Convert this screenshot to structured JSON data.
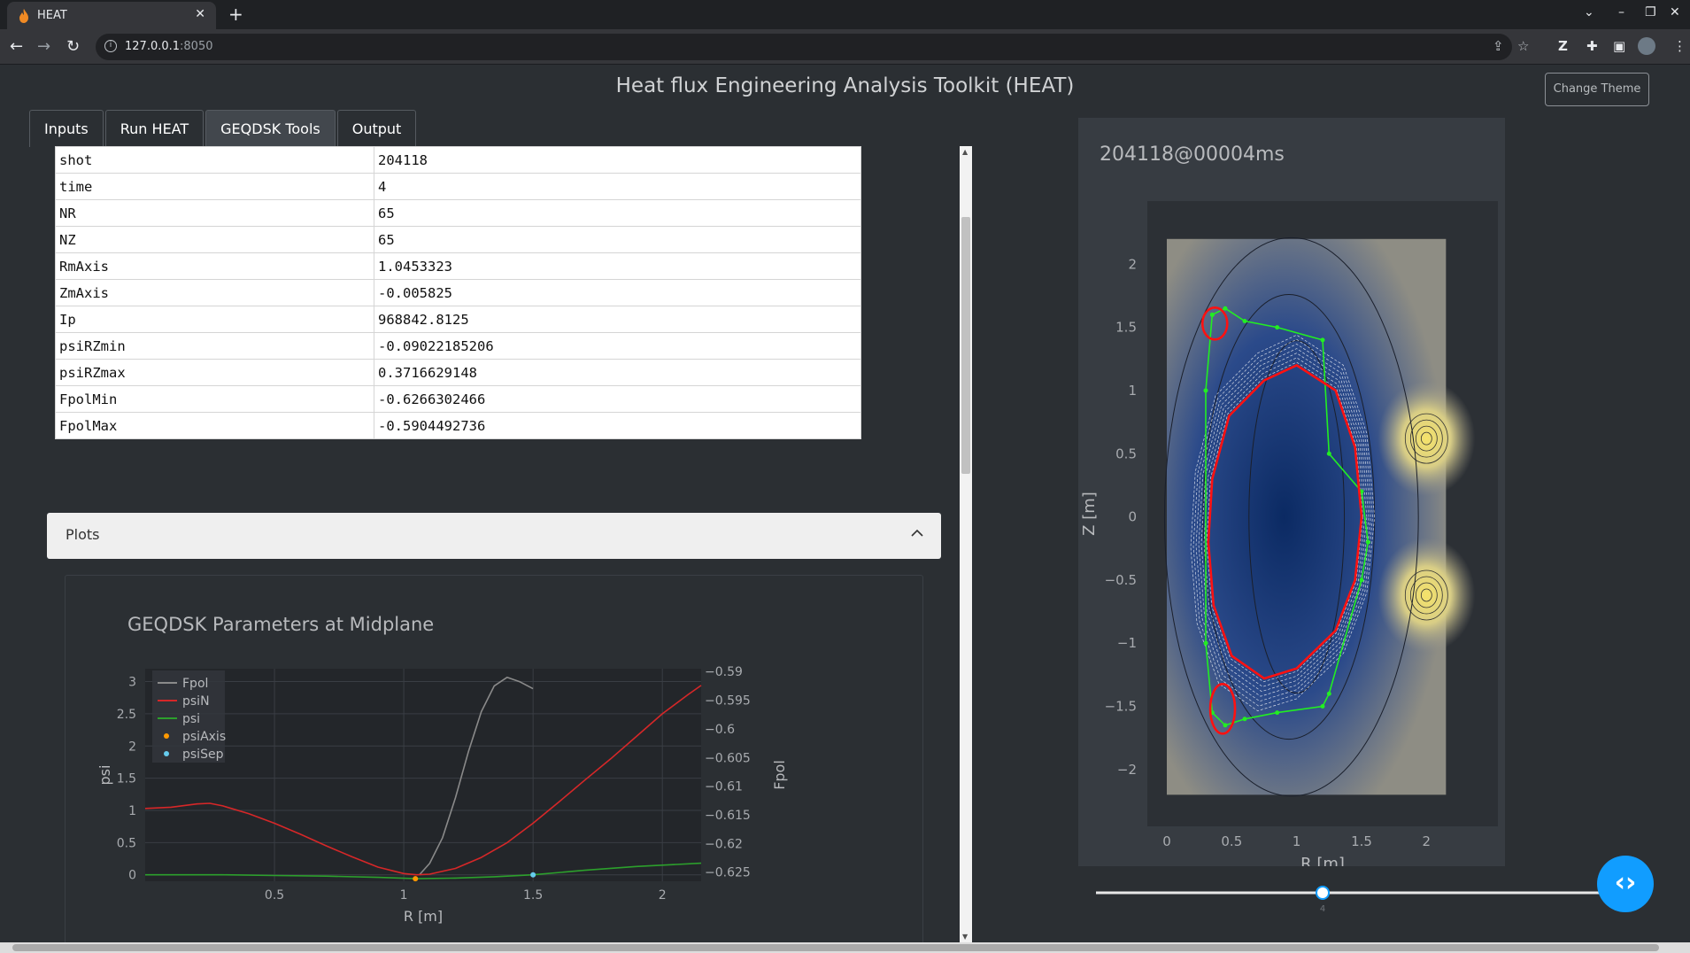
{
  "browser": {
    "tab_title": "HEAT",
    "url_host": "127.0.0.1",
    "url_port": ":8050"
  },
  "app": {
    "title": "Heat flux Engineering Analysis Toolkit (HEAT)",
    "theme_button": "Change Theme"
  },
  "tabs": [
    {
      "label": "Inputs",
      "active": false
    },
    {
      "label": "Run HEAT",
      "active": false
    },
    {
      "label": "GEQDSK Tools",
      "active": true
    },
    {
      "label": "Output",
      "active": false
    }
  ],
  "params_table": [
    {
      "key": "shot",
      "value": "204118"
    },
    {
      "key": "time",
      "value": "4"
    },
    {
      "key": "NR",
      "value": "65"
    },
    {
      "key": "NZ",
      "value": "65"
    },
    {
      "key": "RmAxis",
      "value": "1.0453323"
    },
    {
      "key": "ZmAxis",
      "value": "-0.005825"
    },
    {
      "key": "Ip",
      "value": "968842.8125"
    },
    {
      "key": "psiRZmin",
      "value": "-0.09022185206"
    },
    {
      "key": "psiRZmax",
      "value": "0.3716629148"
    },
    {
      "key": "FpolMin",
      "value": "-0.6266302466"
    },
    {
      "key": "FpolMax",
      "value": "-0.5904492736"
    }
  ],
  "plots_section": {
    "label": "Plots",
    "expanded": true
  },
  "slider": {
    "value": 4,
    "value_label": "4",
    "fraction": 0.44
  },
  "colors": {
    "accent": "#119dff",
    "fpol": "#8a8a8a",
    "psiN": "#d62728",
    "psi": "#2ca02c",
    "psiAxis": "#ff9900",
    "psiSep": "#66ccee",
    "wall": "#22ee22",
    "separatrix": "#ff1111"
  },
  "chart_data": [
    {
      "type": "line",
      "title": "GEQDSK Parameters at Midplane",
      "xlabel": "R [m]",
      "ylabel": "psi",
      "y2label": "Fpol",
      "xlim": [
        0.0,
        2.15
      ],
      "ylim": [
        -0.1,
        3.2
      ],
      "y2lim": [
        -0.6266,
        -0.5895
      ],
      "x_ticks": [
        "0.5",
        "1",
        "1.5",
        "2"
      ],
      "y_ticks": [
        "0",
        "0.5",
        "1",
        "1.5",
        "2",
        "2.5",
        "3"
      ],
      "y2_ticks": [
        "−0.59",
        "−0.595",
        "−0.6",
        "−0.605",
        "−0.61",
        "−0.615",
        "−0.62",
        "−0.625"
      ],
      "legend_position": "top-left",
      "series": [
        {
          "name": "Fpol",
          "axis": "y2",
          "x": [
            1.06,
            1.1,
            1.15,
            1.2,
            1.25,
            1.3,
            1.35,
            1.4,
            1.45,
            1.5
          ],
          "y": [
            -0.6255,
            -0.6235,
            -0.619,
            -0.612,
            -0.604,
            -0.597,
            -0.5925,
            -0.591,
            -0.5918,
            -0.593
          ]
        },
        {
          "name": "psiN",
          "axis": "y",
          "x": [
            0.0,
            0.1,
            0.2,
            0.25,
            0.3,
            0.4,
            0.5,
            0.6,
            0.7,
            0.8,
            0.9,
            1.0,
            1.05,
            1.1,
            1.2,
            1.3,
            1.4,
            1.5,
            1.6,
            1.7,
            1.8,
            1.9,
            2.0,
            2.1,
            2.15
          ],
          "y": [
            1.03,
            1.05,
            1.1,
            1.11,
            1.07,
            0.95,
            0.8,
            0.63,
            0.45,
            0.28,
            0.12,
            0.02,
            0.0,
            0.01,
            0.1,
            0.27,
            0.5,
            0.8,
            1.13,
            1.47,
            1.8,
            2.15,
            2.5,
            2.8,
            2.94
          ]
        },
        {
          "name": "psi",
          "axis": "y",
          "x": [
            0.0,
            0.3,
            0.5,
            0.7,
            0.9,
            1.05,
            1.2,
            1.35,
            1.5,
            1.7,
            1.9,
            2.15
          ],
          "y": [
            0.0,
            0.0,
            -0.01,
            -0.02,
            -0.04,
            -0.06,
            -0.05,
            -0.03,
            0.0,
            0.07,
            0.13,
            0.18
          ]
        },
        {
          "name": "psiAxis",
          "axis": "y",
          "mode": "markers",
          "x": [
            1.045
          ],
          "y": [
            -0.06
          ]
        },
        {
          "name": "psiSep",
          "axis": "y",
          "mode": "markers",
          "x": [
            1.5
          ],
          "y": [
            0.0
          ]
        }
      ]
    },
    {
      "type": "heatmap",
      "title": "204118@00004ms",
      "xlabel": "R [m]",
      "ylabel": "Z [m]",
      "xlim": [
        -0.15,
        2.55
      ],
      "ylim": [
        -2.45,
        2.5
      ],
      "x_ticks": [
        "0",
        "0.5",
        "1",
        "1.5",
        "2"
      ],
      "y_ticks": [
        "2",
        "1.5",
        "1",
        "0.5",
        "0",
        "−0.5",
        "−1",
        "−1.5",
        "−2"
      ],
      "grid_extent": {
        "r": [
          0.0,
          2.15
        ],
        "z": [
          -2.2,
          2.2
        ]
      },
      "wall": {
        "r": [
          0.35,
          0.45,
          0.6,
          0.85,
          1.2,
          1.25,
          1.5,
          1.55,
          1.5,
          1.25,
          1.2,
          0.85,
          0.6,
          0.45,
          0.35,
          0.3,
          0.3,
          0.35
        ],
        "z": [
          1.6,
          1.65,
          1.55,
          1.5,
          1.4,
          0.5,
          0.2,
          -0.2,
          -0.5,
          -1.4,
          -1.5,
          -1.55,
          -1.6,
          -1.65,
          -1.55,
          -1.0,
          1.0,
          1.6
        ]
      },
      "separatrix": {
        "r": [
          1.5,
          1.45,
          1.3,
          1.0,
          0.75,
          0.48,
          0.35,
          0.32,
          0.36,
          0.5,
          0.75,
          1.0,
          1.3,
          1.45,
          1.5
        ],
        "z": [
          0.0,
          0.55,
          1.0,
          1.2,
          1.08,
          0.8,
          0.3,
          -0.2,
          -0.7,
          -1.1,
          -1.28,
          -1.2,
          -0.9,
          -0.5,
          0.0
        ]
      },
      "x_points": [
        {
          "r": 0.48,
          "z": -1.4
        },
        {
          "r": 0.42,
          "z": 1.55
        }
      ]
    }
  ]
}
